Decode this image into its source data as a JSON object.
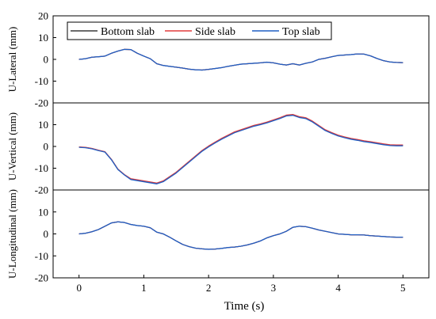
{
  "chart_data": {
    "type": "line",
    "xlabel": "Time (s)",
    "xlim": [
      -0.4,
      5.4
    ],
    "xticks": [
      "0",
      "1",
      "2",
      "3",
      "4",
      "5"
    ],
    "legend": {
      "position": "top-left",
      "entries": [
        {
          "name": "Bottom slab",
          "color": "#3a3a3a"
        },
        {
          "name": "Side slab",
          "color": "#e23b3b"
        },
        {
          "name": "Top slab",
          "color": "#1f5fc4"
        }
      ]
    },
    "panels": [
      {
        "ylabel": "U-Lateral (mm)",
        "ylim": [
          -20,
          20
        ],
        "yticks": [
          "20",
          "10",
          "0",
          "-10",
          "-20"
        ],
        "x": [
          0,
          0.1,
          0.2,
          0.3,
          0.4,
          0.5,
          0.6,
          0.7,
          0.8,
          0.9,
          1.0,
          1.1,
          1.2,
          1.3,
          1.4,
          1.5,
          1.6,
          1.7,
          1.8,
          1.9,
          2.0,
          2.1,
          2.2,
          2.3,
          2.4,
          2.5,
          2.6,
          2.7,
          2.8,
          2.9,
          3.0,
          3.1,
          3.2,
          3.3,
          3.4,
          3.5,
          3.6,
          3.7,
          3.8,
          3.9,
          4.0,
          4.1,
          4.2,
          4.3,
          4.4,
          4.5,
          4.6,
          4.7,
          4.8,
          4.9,
          5.0
        ],
        "series": [
          {
            "name": "Bottom slab",
            "values": [
              0,
              0.3,
              1.0,
              1.2,
              1.5,
              2.8,
              3.8,
              4.6,
              4.5,
              2.8,
              1.5,
              0.3,
              -2.0,
              -2.8,
              -3.2,
              -3.6,
              -4.0,
              -4.5,
              -4.8,
              -4.9,
              -4.6,
              -4.2,
              -3.8,
              -3.2,
              -2.7,
              -2.2,
              -2.0,
              -1.8,
              -1.6,
              -1.3,
              -1.6,
              -2.2,
              -2.6,
              -2.0,
              -2.6,
              -1.8,
              -1.2,
              0.0,
              0.5,
              1.2,
              1.8,
              2.0,
              2.2,
              2.5,
              2.4,
              1.6,
              0.4,
              -0.6,
              -1.2,
              -1.4,
              -1.5
            ]
          },
          {
            "name": "Side slab",
            "values": [
              0,
              0.3,
              1.0,
              1.2,
              1.5,
              2.8,
              3.8,
              4.6,
              4.5,
              2.8,
              1.5,
              0.3,
              -2.0,
              -2.8,
              -3.2,
              -3.6,
              -4.0,
              -4.5,
              -4.8,
              -4.9,
              -4.6,
              -4.2,
              -3.8,
              -3.2,
              -2.7,
              -2.2,
              -2.0,
              -1.8,
              -1.6,
              -1.3,
              -1.6,
              -2.2,
              -2.6,
              -2.0,
              -2.6,
              -1.8,
              -1.2,
              0.0,
              0.5,
              1.2,
              1.8,
              2.0,
              2.2,
              2.5,
              2.4,
              1.6,
              0.4,
              -0.6,
              -1.2,
              -1.4,
              -1.5
            ]
          },
          {
            "name": "Top slab",
            "values": [
              0,
              0.3,
              1.0,
              1.2,
              1.5,
              2.8,
              3.8,
              4.6,
              4.5,
              2.8,
              1.5,
              0.3,
              -2.0,
              -2.8,
              -3.2,
              -3.6,
              -4.0,
              -4.5,
              -4.8,
              -4.9,
              -4.6,
              -4.2,
              -3.8,
              -3.2,
              -2.7,
              -2.2,
              -2.0,
              -1.8,
              -1.6,
              -1.3,
              -1.6,
              -2.2,
              -2.6,
              -2.0,
              -2.6,
              -1.8,
              -1.2,
              0.0,
              0.5,
              1.2,
              1.8,
              2.0,
              2.2,
              2.5,
              2.4,
              1.6,
              0.4,
              -0.6,
              -1.2,
              -1.4,
              -1.5
            ]
          }
        ]
      },
      {
        "ylabel": "U-Vertical (mm)",
        "ylim": [
          -20,
          20
        ],
        "yticks": [
          "10",
          "0",
          "-10",
          "-20"
        ],
        "x": [
          0,
          0.1,
          0.2,
          0.3,
          0.4,
          0.5,
          0.6,
          0.7,
          0.8,
          0.9,
          1.0,
          1.1,
          1.2,
          1.3,
          1.4,
          1.5,
          1.6,
          1.7,
          1.8,
          1.9,
          2.0,
          2.1,
          2.2,
          2.3,
          2.4,
          2.5,
          2.6,
          2.7,
          2.8,
          2.9,
          3.0,
          3.1,
          3.2,
          3.3,
          3.4,
          3.5,
          3.6,
          3.7,
          3.8,
          3.9,
          4.0,
          4.1,
          4.2,
          4.3,
          4.4,
          4.5,
          4.6,
          4.7,
          4.8,
          4.9,
          5.0
        ],
        "series": [
          {
            "name": "Bottom slab",
            "values": [
              -0.3,
              -0.5,
              -1.0,
              -1.8,
              -2.5,
              -6.0,
              -10.5,
              -13.0,
              -15.0,
              -15.5,
              -16.0,
              -16.5,
              -17.0,
              -16.0,
              -14.0,
              -12.0,
              -9.5,
              -7.0,
              -4.5,
              -2.0,
              0.0,
              1.8,
              3.5,
              5.0,
              6.5,
              7.5,
              8.5,
              9.5,
              10.2,
              11.0,
              12.0,
              13.0,
              14.2,
              14.5,
              13.5,
              13.0,
              11.5,
              9.5,
              7.5,
              6.2,
              5.0,
              4.2,
              3.5,
              3.0,
              2.4,
              2.0,
              1.5,
              1.0,
              0.6,
              0.5,
              0.5
            ]
          },
          {
            "name": "Side slab",
            "values": [
              -0.2,
              -0.4,
              -0.9,
              -1.7,
              -2.4,
              -5.9,
              -10.4,
              -12.9,
              -14.8,
              -15.3,
              -15.8,
              -16.3,
              -16.8,
              -15.8,
              -13.8,
              -11.8,
              -9.3,
              -6.8,
              -4.3,
              -1.8,
              0.2,
              2.0,
              3.7,
              5.2,
              6.7,
              7.7,
              8.7,
              9.7,
              10.4,
              11.2,
              12.2,
              13.2,
              14.4,
              14.7,
              13.7,
              13.2,
              11.7,
              9.7,
              7.7,
              6.4,
              5.2,
              4.4,
              3.7,
              3.2,
              2.6,
              2.2,
              1.7,
              1.2,
              0.8,
              0.7,
              0.7
            ]
          },
          {
            "name": "Top slab",
            "values": [
              -0.4,
              -0.6,
              -1.1,
              -1.9,
              -2.6,
              -6.1,
              -10.6,
              -13.1,
              -15.2,
              -15.7,
              -16.2,
              -16.7,
              -17.2,
              -16.2,
              -14.2,
              -12.2,
              -9.7,
              -7.2,
              -4.7,
              -2.2,
              -0.2,
              1.6,
              3.3,
              4.8,
              6.3,
              7.3,
              8.3,
              9.3,
              10.0,
              10.8,
              11.8,
              12.8,
              14.0,
              14.3,
              13.3,
              12.8,
              11.3,
              9.3,
              7.3,
              6.0,
              4.8,
              4.0,
              3.3,
              2.8,
              2.2,
              1.8,
              1.3,
              0.8,
              0.4,
              0.3,
              0.3
            ]
          }
        ]
      },
      {
        "ylabel": "U-Longitudinal (mm)",
        "ylim": [
          -20,
          20
        ],
        "yticks": [
          "10",
          "0",
          "-10",
          "-20"
        ],
        "x": [
          0,
          0.1,
          0.2,
          0.3,
          0.4,
          0.5,
          0.6,
          0.7,
          0.8,
          0.9,
          1.0,
          1.1,
          1.2,
          1.3,
          1.4,
          1.5,
          1.6,
          1.7,
          1.8,
          1.9,
          2.0,
          2.1,
          2.2,
          2.3,
          2.4,
          2.5,
          2.6,
          2.7,
          2.8,
          2.9,
          3.0,
          3.1,
          3.2,
          3.3,
          3.4,
          3.5,
          3.6,
          3.7,
          3.8,
          3.9,
          4.0,
          4.1,
          4.2,
          4.3,
          4.4,
          4.5,
          4.6,
          4.7,
          4.8,
          4.9,
          5.0
        ],
        "series": [
          {
            "name": "Bottom slab",
            "values": [
              0,
              0.3,
              1.0,
              2.0,
              3.5,
              5.0,
              5.5,
              5.2,
              4.3,
              3.8,
              3.5,
              2.8,
              0.8,
              0.0,
              -1.5,
              -3.2,
              -4.8,
              -5.8,
              -6.5,
              -6.8,
              -7.0,
              -6.9,
              -6.6,
              -6.2,
              -6.0,
              -5.6,
              -5.0,
              -4.2,
              -3.2,
              -1.8,
              -0.8,
              0.0,
              1.2,
              3.0,
              3.5,
              3.3,
              2.6,
              1.8,
              1.2,
              0.6,
              0.0,
              -0.2,
              -0.4,
              -0.4,
              -0.5,
              -0.8,
              -1.0,
              -1.2,
              -1.4,
              -1.5,
              -1.5
            ]
          },
          {
            "name": "Side slab",
            "values": [
              0,
              0.3,
              1.0,
              2.0,
              3.5,
              5.0,
              5.5,
              5.2,
              4.3,
              3.8,
              3.5,
              2.8,
              0.8,
              0.0,
              -1.5,
              -3.2,
              -4.8,
              -5.8,
              -6.5,
              -6.8,
              -7.0,
              -6.9,
              -6.6,
              -6.2,
              -6.0,
              -5.6,
              -5.0,
              -4.2,
              -3.2,
              -1.8,
              -0.8,
              0.0,
              1.2,
              3.0,
              3.5,
              3.3,
              2.6,
              1.8,
              1.2,
              0.6,
              0.0,
              -0.2,
              -0.4,
              -0.4,
              -0.5,
              -0.8,
              -1.0,
              -1.2,
              -1.4,
              -1.5,
              -1.5
            ]
          },
          {
            "name": "Top slab",
            "values": [
              0,
              0.3,
              1.0,
              2.0,
              3.5,
              5.0,
              5.5,
              5.2,
              4.3,
              3.8,
              3.5,
              2.8,
              0.8,
              0.0,
              -1.5,
              -3.2,
              -4.8,
              -5.8,
              -6.5,
              -6.8,
              -7.0,
              -6.9,
              -6.6,
              -6.2,
              -6.0,
              -5.6,
              -5.0,
              -4.2,
              -3.2,
              -1.8,
              -0.8,
              0.0,
              1.2,
              3.0,
              3.5,
              3.3,
              2.6,
              1.8,
              1.2,
              0.6,
              0.0,
              -0.2,
              -0.4,
              -0.4,
              -0.5,
              -0.8,
              -1.0,
              -1.2,
              -1.4,
              -1.5,
              -1.5
            ]
          }
        ]
      }
    ]
  }
}
